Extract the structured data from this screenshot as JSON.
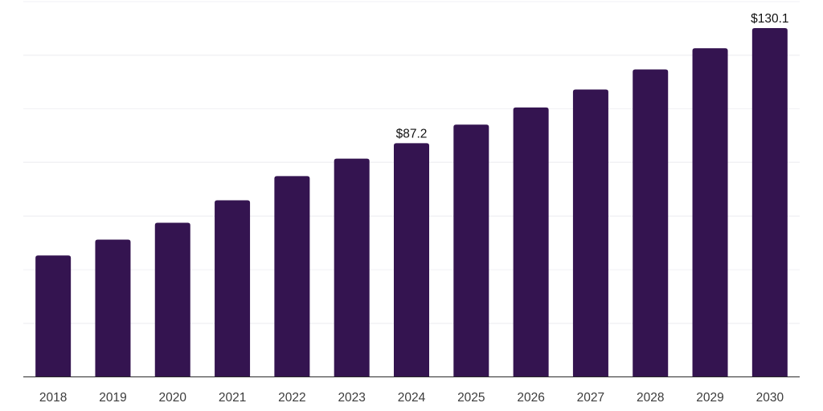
{
  "chart_data": {
    "type": "bar",
    "title": "",
    "xlabel": "",
    "ylabel": "",
    "categories": [
      "2018",
      "2019",
      "2020",
      "2021",
      "2022",
      "2023",
      "2024",
      "2025",
      "2026",
      "2027",
      "2028",
      "2029",
      "2030"
    ],
    "values": [
      45.3,
      51.2,
      57.5,
      65.9,
      74.9,
      81.4,
      87.2,
      94.1,
      100.5,
      107.2,
      114.7,
      122.6,
      130.1
    ],
    "data_labels": [
      {
        "category": "2024",
        "text": "$87.2"
      },
      {
        "category": "2030",
        "text": "$130.1"
      }
    ],
    "ylim": [
      0,
      140
    ],
    "grid_step": 20,
    "grid": true,
    "legend": "none",
    "colors": {
      "bar": "#341450",
      "gridline": "#f2f2f4",
      "axis_line": "#2b2b2b",
      "tick_label": "#3c3c3c",
      "data_label": "#111111",
      "background": "#ffffff"
    }
  }
}
